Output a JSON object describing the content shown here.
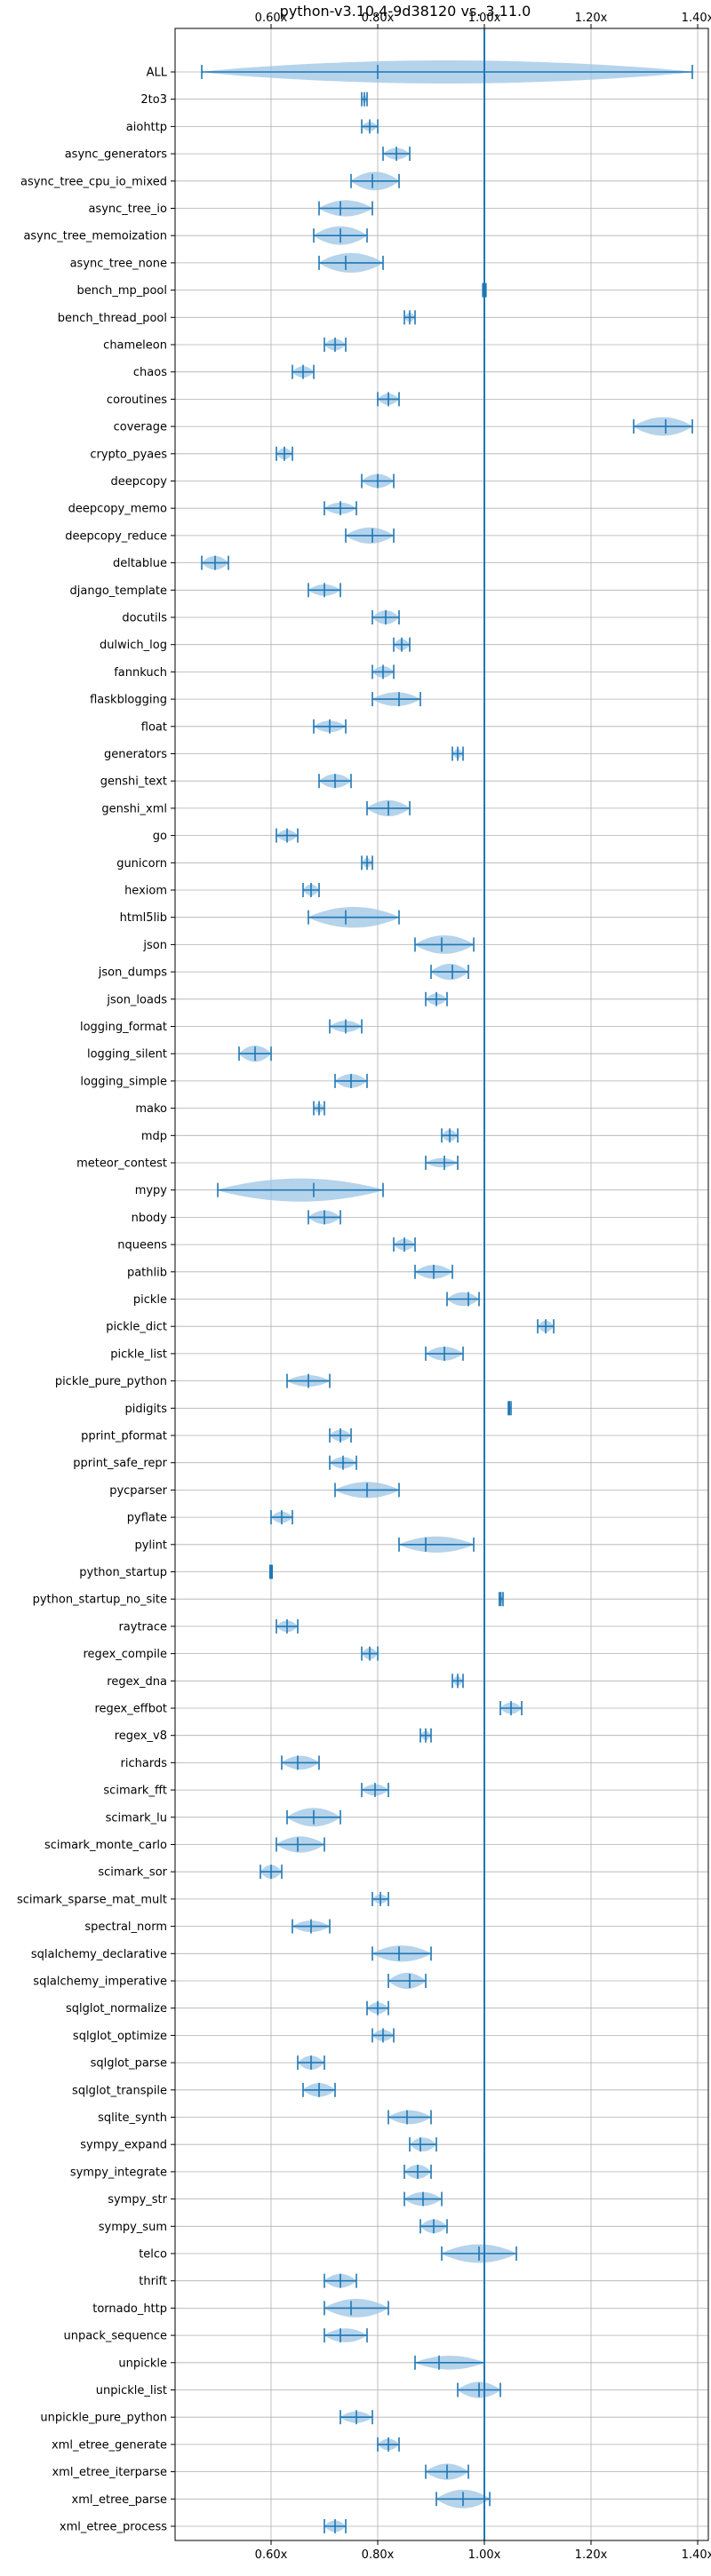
{
  "colors": {
    "accent": "#1f77b4",
    "violin_fill": "#9cc4e4",
    "grid": "#b0b0b0",
    "axis": "#000000",
    "background": "#ffffff"
  },
  "chart_data": {
    "type": "violin",
    "orientation": "horizontal",
    "title": "python-v3.10.4-9d38120 vs. 3.11.0",
    "xlim": [
      0.42,
      1.42
    ],
    "x_ticks": [
      0.6,
      0.8,
      1.0,
      1.2,
      1.4
    ],
    "x_tick_labels": [
      "0.60x",
      "0.80x",
      "1.00x",
      "1.20x",
      "1.40x"
    ],
    "x_tick_position": "top and bottom",
    "reference_line_x": 1.0,
    "grid": true,
    "series": [
      {
        "label": "ALL",
        "min": 0.47,
        "max": 1.39,
        "median": 0.8,
        "width": 1.0
      },
      {
        "label": "2to3",
        "min": 0.77,
        "max": 0.78,
        "median": 0.775,
        "width": 0.35
      },
      {
        "label": "aiohttp",
        "min": 0.77,
        "max": 0.8,
        "median": 0.785,
        "width": 0.4
      },
      {
        "label": "async_generators",
        "min": 0.81,
        "max": 0.86,
        "median": 0.835,
        "width": 0.5
      },
      {
        "label": "async_tree_cpu_io_mixed",
        "min": 0.75,
        "max": 0.84,
        "median": 0.79,
        "width": 0.8
      },
      {
        "label": "async_tree_io",
        "min": 0.69,
        "max": 0.79,
        "median": 0.73,
        "width": 0.7
      },
      {
        "label": "async_tree_memoization",
        "min": 0.68,
        "max": 0.78,
        "median": 0.73,
        "width": 0.8
      },
      {
        "label": "async_tree_none",
        "min": 0.69,
        "max": 0.81,
        "median": 0.74,
        "width": 0.85
      },
      {
        "label": "bench_mp_pool",
        "min": 0.997,
        "max": 1.003,
        "median": 1.0,
        "width": 0.3
      },
      {
        "label": "bench_thread_pool",
        "min": 0.85,
        "max": 0.87,
        "median": 0.86,
        "width": 0.4
      },
      {
        "label": "chameleon",
        "min": 0.7,
        "max": 0.74,
        "median": 0.72,
        "width": 0.5
      },
      {
        "label": "chaos",
        "min": 0.64,
        "max": 0.68,
        "median": 0.66,
        "width": 0.5
      },
      {
        "label": "coroutines",
        "min": 0.8,
        "max": 0.84,
        "median": 0.82,
        "width": 0.5
      },
      {
        "label": "coverage",
        "min": 1.28,
        "max": 1.39,
        "median": 1.34,
        "width": 0.8
      },
      {
        "label": "crypto_pyaes",
        "min": 0.61,
        "max": 0.64,
        "median": 0.625,
        "width": 0.5
      },
      {
        "label": "deepcopy",
        "min": 0.77,
        "max": 0.83,
        "median": 0.8,
        "width": 0.6
      },
      {
        "label": "deepcopy_memo",
        "min": 0.7,
        "max": 0.76,
        "median": 0.73,
        "width": 0.5
      },
      {
        "label": "deepcopy_reduce",
        "min": 0.74,
        "max": 0.83,
        "median": 0.79,
        "width": 0.7
      },
      {
        "label": "deltablue",
        "min": 0.47,
        "max": 0.52,
        "median": 0.495,
        "width": 0.6
      },
      {
        "label": "django_template",
        "min": 0.67,
        "max": 0.73,
        "median": 0.7,
        "width": 0.5
      },
      {
        "label": "docutils",
        "min": 0.79,
        "max": 0.84,
        "median": 0.815,
        "width": 0.6
      },
      {
        "label": "dulwich_log",
        "min": 0.83,
        "max": 0.86,
        "median": 0.845,
        "width": 0.5
      },
      {
        "label": "fannkuch",
        "min": 0.79,
        "max": 0.83,
        "median": 0.81,
        "width": 0.5
      },
      {
        "label": "flaskblogging",
        "min": 0.79,
        "max": 0.88,
        "median": 0.84,
        "width": 0.6
      },
      {
        "label": "float",
        "min": 0.68,
        "max": 0.74,
        "median": 0.71,
        "width": 0.5
      },
      {
        "label": "generators",
        "min": 0.94,
        "max": 0.96,
        "median": 0.95,
        "width": 0.4
      },
      {
        "label": "genshi_text",
        "min": 0.69,
        "max": 0.75,
        "median": 0.72,
        "width": 0.6
      },
      {
        "label": "genshi_xml",
        "min": 0.78,
        "max": 0.86,
        "median": 0.82,
        "width": 0.7
      },
      {
        "label": "go",
        "min": 0.61,
        "max": 0.65,
        "median": 0.63,
        "width": 0.5
      },
      {
        "label": "gunicorn",
        "min": 0.77,
        "max": 0.79,
        "median": 0.78,
        "width": 0.4
      },
      {
        "label": "hexiom",
        "min": 0.66,
        "max": 0.69,
        "median": 0.675,
        "width": 0.5
      },
      {
        "label": "html5lib",
        "min": 0.67,
        "max": 0.84,
        "median": 0.74,
        "width": 0.9
      },
      {
        "label": "json",
        "min": 0.87,
        "max": 0.98,
        "median": 0.92,
        "width": 0.8
      },
      {
        "label": "json_dumps",
        "min": 0.9,
        "max": 0.97,
        "median": 0.94,
        "width": 0.7
      },
      {
        "label": "json_loads",
        "min": 0.89,
        "max": 0.93,
        "median": 0.91,
        "width": 0.5
      },
      {
        "label": "logging_format",
        "min": 0.71,
        "max": 0.77,
        "median": 0.74,
        "width": 0.5
      },
      {
        "label": "logging_silent",
        "min": 0.54,
        "max": 0.6,
        "median": 0.57,
        "width": 0.7
      },
      {
        "label": "logging_simple",
        "min": 0.72,
        "max": 0.78,
        "median": 0.75,
        "width": 0.6
      },
      {
        "label": "mako",
        "min": 0.68,
        "max": 0.7,
        "median": 0.69,
        "width": 0.4
      },
      {
        "label": "mdp",
        "min": 0.92,
        "max": 0.95,
        "median": 0.935,
        "width": 0.5
      },
      {
        "label": "meteor_contest",
        "min": 0.89,
        "max": 0.95,
        "median": 0.925,
        "width": 0.4
      },
      {
        "label": "mypy",
        "min": 0.5,
        "max": 0.81,
        "median": 0.68,
        "width": 1.0
      },
      {
        "label": "nbody",
        "min": 0.67,
        "max": 0.73,
        "median": 0.7,
        "width": 0.6
      },
      {
        "label": "nqueens",
        "min": 0.83,
        "max": 0.87,
        "median": 0.85,
        "width": 0.5
      },
      {
        "label": "pathlib",
        "min": 0.87,
        "max": 0.94,
        "median": 0.905,
        "width": 0.6
      },
      {
        "label": "pickle",
        "min": 0.93,
        "max": 0.99,
        "median": 0.97,
        "width": 0.6
      },
      {
        "label": "pickle_dict",
        "min": 1.1,
        "max": 1.13,
        "median": 1.115,
        "width": 0.5
      },
      {
        "label": "pickle_list",
        "min": 0.89,
        "max": 0.96,
        "median": 0.925,
        "width": 0.6
      },
      {
        "label": "pickle_pure_python",
        "min": 0.63,
        "max": 0.71,
        "median": 0.67,
        "width": 0.5
      },
      {
        "label": "pidigits",
        "min": 1.045,
        "max": 1.05,
        "median": 1.047,
        "width": 0.3
      },
      {
        "label": "pprint_pformat",
        "min": 0.71,
        "max": 0.75,
        "median": 0.73,
        "width": 0.5
      },
      {
        "label": "pprint_safe_repr",
        "min": 0.71,
        "max": 0.76,
        "median": 0.735,
        "width": 0.5
      },
      {
        "label": "pycparser",
        "min": 0.72,
        "max": 0.84,
        "median": 0.78,
        "width": 0.7
      },
      {
        "label": "pyflate",
        "min": 0.6,
        "max": 0.64,
        "median": 0.62,
        "width": 0.5
      },
      {
        "label": "pylint",
        "min": 0.84,
        "max": 0.98,
        "median": 0.89,
        "width": 0.7
      },
      {
        "label": "python_startup",
        "min": 0.598,
        "max": 0.602,
        "median": 0.6,
        "width": 0.3
      },
      {
        "label": "python_startup_no_site",
        "min": 1.028,
        "max": 1.035,
        "median": 1.031,
        "width": 0.3
      },
      {
        "label": "raytrace",
        "min": 0.61,
        "max": 0.65,
        "median": 0.63,
        "width": 0.5
      },
      {
        "label": "regex_compile",
        "min": 0.77,
        "max": 0.8,
        "median": 0.785,
        "width": 0.5
      },
      {
        "label": "regex_dna",
        "min": 0.94,
        "max": 0.96,
        "median": 0.95,
        "width": 0.4
      },
      {
        "label": "regex_effbot",
        "min": 1.03,
        "max": 1.07,
        "median": 1.05,
        "width": 0.5
      },
      {
        "label": "regex_v8",
        "min": 0.88,
        "max": 0.9,
        "median": 0.89,
        "width": 0.4
      },
      {
        "label": "richards",
        "min": 0.62,
        "max": 0.69,
        "median": 0.65,
        "width": 0.6
      },
      {
        "label": "scimark_fft",
        "min": 0.77,
        "max": 0.82,
        "median": 0.795,
        "width": 0.5
      },
      {
        "label": "scimark_lu",
        "min": 0.63,
        "max": 0.73,
        "median": 0.68,
        "width": 0.8
      },
      {
        "label": "scimark_monte_carlo",
        "min": 0.61,
        "max": 0.7,
        "median": 0.65,
        "width": 0.7
      },
      {
        "label": "scimark_sor",
        "min": 0.58,
        "max": 0.62,
        "median": 0.6,
        "width": 0.6
      },
      {
        "label": "scimark_sparse_mat_mult",
        "min": 0.79,
        "max": 0.82,
        "median": 0.805,
        "width": 0.4
      },
      {
        "label": "spectral_norm",
        "min": 0.64,
        "max": 0.71,
        "median": 0.675,
        "width": 0.5
      },
      {
        "label": "sqlalchemy_declarative",
        "min": 0.79,
        "max": 0.9,
        "median": 0.84,
        "width": 0.7
      },
      {
        "label": "sqlalchemy_imperative",
        "min": 0.82,
        "max": 0.89,
        "median": 0.86,
        "width": 0.7
      },
      {
        "label": "sqlglot_normalize",
        "min": 0.78,
        "max": 0.82,
        "median": 0.8,
        "width": 0.5
      },
      {
        "label": "sqlglot_optimize",
        "min": 0.79,
        "max": 0.83,
        "median": 0.81,
        "width": 0.5
      },
      {
        "label": "sqlglot_parse",
        "min": 0.65,
        "max": 0.7,
        "median": 0.675,
        "width": 0.6
      },
      {
        "label": "sqlglot_transpile",
        "min": 0.66,
        "max": 0.72,
        "median": 0.69,
        "width": 0.6
      },
      {
        "label": "sqlite_synth",
        "min": 0.82,
        "max": 0.9,
        "median": 0.855,
        "width": 0.6
      },
      {
        "label": "sympy_expand",
        "min": 0.86,
        "max": 0.91,
        "median": 0.88,
        "width": 0.6
      },
      {
        "label": "sympy_integrate",
        "min": 0.85,
        "max": 0.9,
        "median": 0.875,
        "width": 0.6
      },
      {
        "label": "sympy_str",
        "min": 0.85,
        "max": 0.92,
        "median": 0.885,
        "width": 0.6
      },
      {
        "label": "sympy_sum",
        "min": 0.88,
        "max": 0.93,
        "median": 0.905,
        "width": 0.6
      },
      {
        "label": "telco",
        "min": 0.92,
        "max": 1.06,
        "median": 0.99,
        "width": 0.8
      },
      {
        "label": "thrift",
        "min": 0.7,
        "max": 0.76,
        "median": 0.73,
        "width": 0.6
      },
      {
        "label": "tornado_http",
        "min": 0.7,
        "max": 0.82,
        "median": 0.75,
        "width": 0.8
      },
      {
        "label": "unpack_sequence",
        "min": 0.7,
        "max": 0.78,
        "median": 0.73,
        "width": 0.6
      },
      {
        "label": "unpickle",
        "min": 0.87,
        "max": 1.0,
        "median": 0.915,
        "width": 0.6
      },
      {
        "label": "unpickle_list",
        "min": 0.95,
        "max": 1.03,
        "median": 0.99,
        "width": 0.7
      },
      {
        "label": "unpickle_pure_python",
        "min": 0.73,
        "max": 0.79,
        "median": 0.76,
        "width": 0.5
      },
      {
        "label": "xml_etree_generate",
        "min": 0.8,
        "max": 0.84,
        "median": 0.82,
        "width": 0.5
      },
      {
        "label": "xml_etree_iterparse",
        "min": 0.89,
        "max": 0.97,
        "median": 0.93,
        "width": 0.7
      },
      {
        "label": "xml_etree_parse",
        "min": 0.91,
        "max": 1.01,
        "median": 0.96,
        "width": 0.8
      },
      {
        "label": "xml_etree_process",
        "min": 0.7,
        "max": 0.74,
        "median": 0.72,
        "width": 0.5
      }
    ]
  }
}
